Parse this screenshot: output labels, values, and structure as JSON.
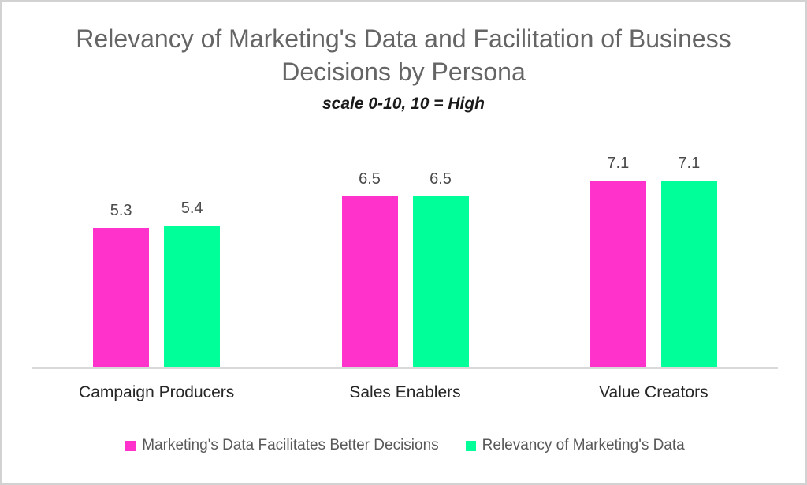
{
  "chart_data": {
    "type": "bar",
    "title": "Relevancy of Marketing's Data and Facilitation of Business Decisions by Persona",
    "subtitle": "scale 0-10, 10 = High",
    "categories": [
      "Campaign Producers",
      "Sales Enablers",
      "Value Creators"
    ],
    "series": [
      {
        "name": "Marketing's Data Facilitates Better Decisions",
        "color": "#FF33CC",
        "values": [
          5.3,
          6.5,
          7.1
        ]
      },
      {
        "name": "Relevancy of Marketing's Data",
        "color": "#00FF99",
        "values": [
          5.4,
          6.5,
          7.1
        ]
      }
    ],
    "ylim": [
      0,
      10
    ],
    "grid": false,
    "data_labels": true,
    "legend_position": "bottom",
    "axis_line_color": "#d9d9d9"
  }
}
